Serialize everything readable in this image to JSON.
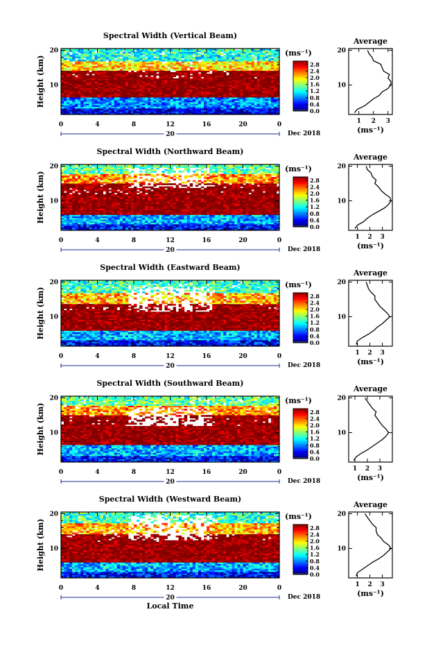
{
  "chart_data": [
    {
      "type": "heatmap",
      "title": "Spectral Width (Vertical Beam)",
      "ylabel": "Height (km)",
      "xlabel": "",
      "x_ticks": [
        "0",
        "4",
        "8",
        "12",
        "16",
        "20",
        "0"
      ],
      "y_ticks": [
        "10",
        "20"
      ],
      "xlim": [
        0,
        24
      ],
      "ylim": [
        1.5,
        20.5
      ],
      "date_marker": "20",
      "date_label": "Dec 2018",
      "colorbar": {
        "unit": "(ms⁻¹)",
        "ticks": [
          "0.0",
          "0.4",
          "0.8",
          "1.2",
          "1.6",
          "2.0",
          "2.4",
          "2.8"
        ],
        "range": [
          0,
          3.0
        ]
      },
      "bands": [
        [
          1.5,
          3.5,
          0.3
        ],
        [
          3.5,
          6.5,
          0.8
        ],
        [
          6.5,
          14.0,
          2.9
        ],
        [
          14.0,
          17.0,
          2.0
        ],
        [
          17.0,
          20.5,
          1.2
        ]
      ],
      "gaps": [],
      "average": {
        "title": "Average",
        "xlabel": "(ms⁻¹)",
        "x_ticks": [
          "1",
          "2",
          "3"
        ],
        "xlim": [
          0.3,
          3.3
        ],
        "y_ticks": [
          "10",
          "20"
        ],
        "height": [
          2,
          3,
          4,
          5,
          6,
          7,
          8,
          9,
          10,
          11,
          12,
          13,
          14,
          15,
          16,
          17,
          18,
          19,
          20
        ],
        "width": [
          0.7,
          0.9,
          1.4,
          1.7,
          2.0,
          2.4,
          2.6,
          3.0,
          3.2,
          3.2,
          3.0,
          3.1,
          2.7,
          2.6,
          2.5,
          2.0,
          1.9,
          1.7,
          1.6
        ]
      }
    },
    {
      "type": "heatmap",
      "title": "Spectral Width (Northward Beam)",
      "ylabel": "Height (km)",
      "xlabel": "",
      "x_ticks": [
        "0",
        "4",
        "8",
        "12",
        "16",
        "20",
        "0"
      ],
      "y_ticks": [
        "10",
        "20"
      ],
      "xlim": [
        0,
        24
      ],
      "ylim": [
        1.5,
        20.5
      ],
      "date_marker": "20",
      "date_label": "Dec 2018",
      "colorbar": {
        "unit": "(ms⁻¹)",
        "ticks": [
          "0.0",
          "0.4",
          "0.8",
          "1.2",
          "1.6",
          "2.0",
          "2.4",
          "2.8"
        ],
        "range": [
          0,
          3.0
        ]
      },
      "bands": [
        [
          1.5,
          3.5,
          0.4
        ],
        [
          3.5,
          6.0,
          0.9
        ],
        [
          6.0,
          15.0,
          2.9
        ],
        [
          15.0,
          18.0,
          2.2
        ],
        [
          18.0,
          20.5,
          1.4
        ]
      ],
      "gaps": [
        [
          7.5,
          16.5,
          13.5,
          19.5
        ]
      ],
      "average": {
        "title": "Average",
        "xlabel": "(ms⁻¹)",
        "x_ticks": [
          "1",
          "2",
          "3"
        ],
        "xlim": [
          0.3,
          3.8
        ],
        "y_ticks": [
          "10",
          "20"
        ],
        "height": [
          2,
          3,
          4,
          5,
          6,
          7,
          8,
          9,
          10,
          11,
          12,
          13,
          14,
          15,
          16,
          17,
          18,
          19,
          20
        ],
        "width": [
          0.8,
          1.0,
          1.5,
          1.8,
          2.2,
          2.7,
          3.2,
          3.5,
          3.7,
          3.6,
          3.2,
          2.9,
          2.7,
          2.4,
          2.5,
          2.2,
          2.1,
          1.8,
          1.7
        ]
      }
    },
    {
      "type": "heatmap",
      "title": "Spectral Width (Eastward Beam)",
      "ylabel": "Height (km)",
      "xlabel": "",
      "x_ticks": [
        "0",
        "4",
        "8",
        "12",
        "16",
        "20",
        "0"
      ],
      "y_ticks": [
        "10",
        "20"
      ],
      "xlim": [
        0,
        24
      ],
      "ylim": [
        1.5,
        20.5
      ],
      "date_marker": "20",
      "date_label": "Dec 2018",
      "colorbar": {
        "unit": "(ms⁻¹)",
        "ticks": [
          "0.0",
          "0.4",
          "0.8",
          "1.2",
          "1.6",
          "2.0",
          "2.4",
          "2.8"
        ],
        "range": [
          0,
          3.0
        ]
      },
      "bands": [
        [
          1.5,
          3.5,
          0.4
        ],
        [
          3.5,
          6.0,
          0.9
        ],
        [
          6.0,
          13.5,
          2.9
        ],
        [
          13.5,
          17.0,
          2.1
        ],
        [
          17.0,
          20.5,
          1.3
        ]
      ],
      "gaps": [
        [
          7.5,
          16.5,
          11.5,
          18.5
        ]
      ],
      "average": {
        "title": "Average",
        "xlabel": "(ms⁻¹)",
        "x_ticks": [
          "1",
          "2",
          "3"
        ],
        "xlim": [
          0.3,
          3.8
        ],
        "y_ticks": [
          "10",
          "20"
        ],
        "height": [
          2,
          3,
          4,
          5,
          6,
          7,
          8,
          9,
          10,
          11,
          12,
          13,
          14,
          15,
          16,
          17,
          18,
          19,
          20
        ],
        "width": [
          0.9,
          1.0,
          1.4,
          1.9,
          2.3,
          2.6,
          3.0,
          3.3,
          3.6,
          3.4,
          3.1,
          2.8,
          2.6,
          2.4,
          2.4,
          2.1,
          1.9,
          1.8,
          1.7
        ]
      }
    },
    {
      "type": "heatmap",
      "title": "Spectral Width (Southward Beam)",
      "ylabel": "Height (km)",
      "xlabel": "",
      "x_ticks": [
        "0",
        "4",
        "8",
        "12",
        "16",
        "20",
        "0"
      ],
      "y_ticks": [
        "10",
        "20"
      ],
      "xlim": [
        0,
        24
      ],
      "ylim": [
        1.5,
        20.5
      ],
      "date_marker": "20",
      "date_label": "Dec 2018",
      "colorbar": {
        "unit": "(ms⁻¹)",
        "ticks": [
          "0.0",
          "0.4",
          "0.8",
          "1.2",
          "1.6",
          "2.0",
          "2.4",
          "2.8"
        ],
        "range": [
          0,
          3.0
        ]
      },
      "bands": [
        [
          1.5,
          3.5,
          0.4
        ],
        [
          3.5,
          6.5,
          0.9
        ],
        [
          6.5,
          15.0,
          2.9
        ],
        [
          15.0,
          18.0,
          2.2
        ],
        [
          18.0,
          20.5,
          1.4
        ]
      ],
      "gaps": [
        [
          7.5,
          16.5,
          12.0,
          17.5
        ]
      ],
      "average": {
        "title": "Average",
        "xlabel": "(ms⁻¹)",
        "x_ticks": [
          "1",
          "2",
          "3"
        ],
        "xlim": [
          0.5,
          4.0
        ],
        "y_ticks": [
          "10",
          "20"
        ],
        "height": [
          2,
          3,
          4,
          5,
          6,
          7,
          8,
          9,
          10,
          11,
          12,
          13,
          14,
          15,
          16,
          17,
          18,
          19,
          20
        ],
        "width": [
          0.9,
          1.1,
          1.5,
          2.0,
          2.4,
          2.8,
          3.2,
          3.5,
          3.7,
          3.5,
          3.2,
          3.0,
          2.8,
          2.6,
          2.7,
          2.4,
          2.2,
          2.0,
          1.8
        ]
      }
    },
    {
      "type": "heatmap",
      "title": "Spectral Width (Westward Beam)",
      "ylabel": "Height (km)",
      "xlabel": "Local Time",
      "x_ticks": [
        "0",
        "4",
        "8",
        "12",
        "16",
        "20",
        "0"
      ],
      "y_ticks": [
        "10",
        "20"
      ],
      "xlim": [
        0,
        24
      ],
      "ylim": [
        1.5,
        20.5
      ],
      "date_marker": "20",
      "date_label": "Dec 2018",
      "colorbar": {
        "unit": "(ms⁻¹)",
        "ticks": [
          "0.0",
          "0.4",
          "0.8",
          "1.2",
          "1.6",
          "2.0",
          "2.4",
          "2.8"
        ],
        "range": [
          0,
          3.0
        ]
      },
      "bands": [
        [
          1.5,
          3.5,
          0.4
        ],
        [
          3.5,
          6.0,
          0.9
        ],
        [
          6.0,
          14.0,
          2.9
        ],
        [
          14.0,
          17.5,
          2.1
        ],
        [
          17.5,
          20.5,
          1.3
        ]
      ],
      "gaps": [
        [
          7.5,
          16.5,
          12.5,
          19.5
        ]
      ],
      "average": {
        "title": "Average",
        "xlabel": "(ms⁻¹)",
        "x_ticks": [
          "1",
          "2",
          "3"
        ],
        "xlim": [
          0.3,
          3.8
        ],
        "y_ticks": [
          "10",
          "20"
        ],
        "height": [
          2,
          3,
          4,
          5,
          6,
          7,
          8,
          9,
          10,
          11,
          12,
          13,
          14,
          15,
          16,
          17,
          18,
          19,
          20
        ],
        "width": [
          0.9,
          1.0,
          1.4,
          1.8,
          2.2,
          2.7,
          3.1,
          3.4,
          3.7,
          3.5,
          3.1,
          2.9,
          2.6,
          2.5,
          2.5,
          2.2,
          2.0,
          1.8,
          1.6
        ]
      }
    }
  ]
}
